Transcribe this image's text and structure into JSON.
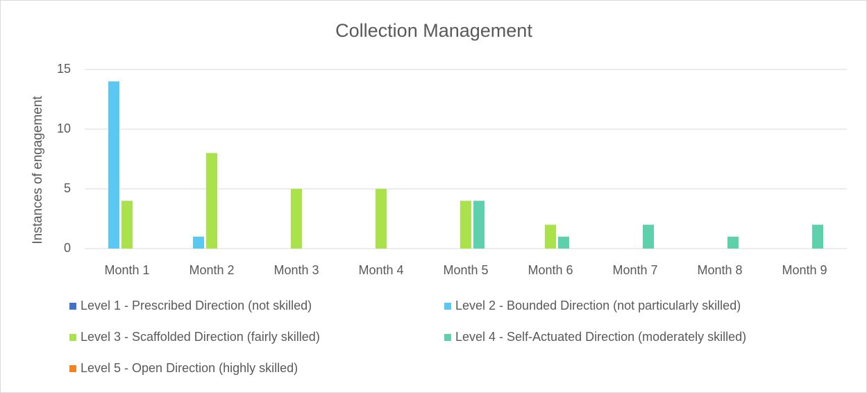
{
  "chart_data": {
    "type": "bar",
    "title": "Collection Management",
    "ylabel": "Instances of engagement",
    "categories": [
      "Month 1",
      "Month 2",
      "Month 3",
      "Month 4",
      "Month 5",
      "Month 6",
      "Month 7",
      "Month 8",
      "Month 9"
    ],
    "series": [
      {
        "name": "Level 1 - Prescribed Direction (not skilled)",
        "color": "#4472c4",
        "values": [
          0,
          0,
          0,
          0,
          0,
          0,
          0,
          0,
          0
        ]
      },
      {
        "name": "Level 2 - Bounded Direction (not particularly skilled)",
        "color": "#5bc8f2",
        "values": [
          14,
          1,
          0,
          0,
          0,
          0,
          0,
          0,
          0
        ]
      },
      {
        "name": "Level 3 - Scaffolded Direction (fairly skilled)",
        "color": "#a9e24a",
        "values": [
          4,
          8,
          5,
          5,
          4,
          2,
          0,
          0,
          0
        ]
      },
      {
        "name": "Level 4 - Self-Actuated Direction (moderately skilled)",
        "color": "#5ed0ab",
        "values": [
          0,
          0,
          0,
          0,
          4,
          1,
          2,
          1,
          2
        ]
      },
      {
        "name": "Level 5 - Open Direction (highly skilled)",
        "color": "#f58220",
        "values": [
          0,
          0,
          0,
          0,
          0,
          0,
          0,
          0,
          0
        ]
      }
    ],
    "ylim": [
      0,
      15
    ],
    "yticks": [
      0,
      5,
      10,
      15
    ],
    "grid": true,
    "legend": "bottom"
  }
}
